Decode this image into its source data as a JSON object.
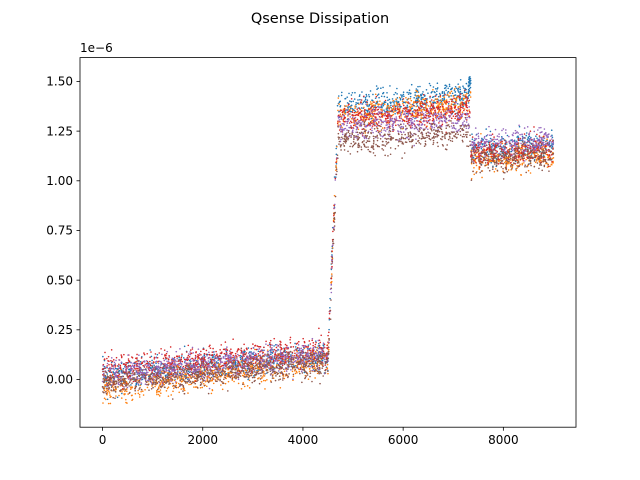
{
  "chart_data": {
    "type": "scatter",
    "title": "Qsense Dissipation",
    "xlabel": "",
    "ylabel": "",
    "offset_text": "1e−6",
    "xlim": [
      -450,
      9450
    ],
    "ylim": [
      -0.24,
      1.62
    ],
    "xticks": [
      0,
      2000,
      4000,
      6000,
      8000
    ],
    "xtick_labels": [
      "0",
      "2000",
      "4000",
      "6000",
      "8000"
    ],
    "yticks": [
      0.0,
      0.25,
      0.5,
      0.75,
      1.0,
      1.25,
      1.5
    ],
    "ytick_labels": [
      "0.00",
      "0.25",
      "0.50",
      "0.75",
      "1.00",
      "1.25",
      "1.50"
    ],
    "grid": false,
    "legend": "none",
    "series": [
      {
        "color": "#1f77b4",
        "values": [
          [
            0,
            0.02
          ],
          [
            4500,
            0.12
          ],
          [
            4700,
            1.37
          ],
          [
            7300,
            1.43
          ],
          [
            7400,
            1.16
          ],
          [
            9000,
            1.18
          ]
        ]
      },
      {
        "color": "#ff7f0e",
        "values": [
          [
            0,
            -0.05
          ],
          [
            4500,
            0.1
          ],
          [
            4700,
            1.32
          ],
          [
            7300,
            1.39
          ],
          [
            7400,
            1.1
          ],
          [
            9000,
            1.13
          ]
        ]
      },
      {
        "color": "#d62728",
        "values": [
          [
            0,
            0.05
          ],
          [
            4500,
            0.15
          ],
          [
            4700,
            1.31
          ],
          [
            7300,
            1.36
          ],
          [
            7400,
            1.14
          ],
          [
            9000,
            1.16
          ]
        ]
      },
      {
        "color": "#9467bd",
        "values": [
          [
            0,
            0.03
          ],
          [
            4500,
            0.12
          ],
          [
            4700,
            1.27
          ],
          [
            7300,
            1.31
          ],
          [
            7400,
            1.18
          ],
          [
            9000,
            1.2
          ]
        ]
      },
      {
        "color": "#8c564b",
        "values": [
          [
            0,
            -0.02
          ],
          [
            4500,
            0.08
          ],
          [
            4700,
            1.2
          ],
          [
            7300,
            1.24
          ],
          [
            7400,
            1.11
          ],
          [
            9000,
            1.13
          ]
        ]
      }
    ]
  }
}
